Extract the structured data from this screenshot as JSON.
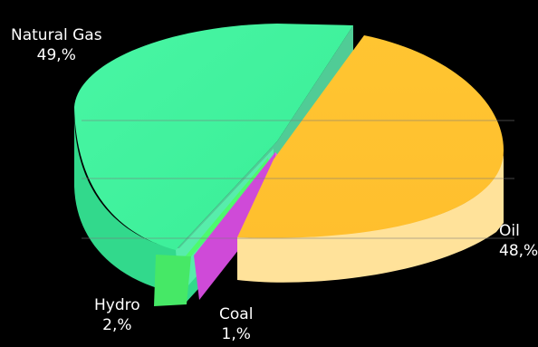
{
  "chart_data": {
    "type": "pie",
    "title": "",
    "slices": [
      {
        "label": "Natural Gas",
        "value_text": "49,%",
        "value": 49,
        "color": "#3ef29a"
      },
      {
        "label": "Oil",
        "value_text": "48,%",
        "value": 48,
        "color": "#ffc233"
      },
      {
        "label": "Hydro",
        "value_text": "2,%",
        "value": 2,
        "color": "#4dfa6e"
      },
      {
        "label": "Coal",
        "value_text": "1,%",
        "value": 1,
        "color": "#e85ce8"
      }
    ],
    "exploded": true,
    "three_d": true,
    "legend": "none"
  },
  "colors": {
    "background": "#000000",
    "label_text": "#ffffff"
  }
}
